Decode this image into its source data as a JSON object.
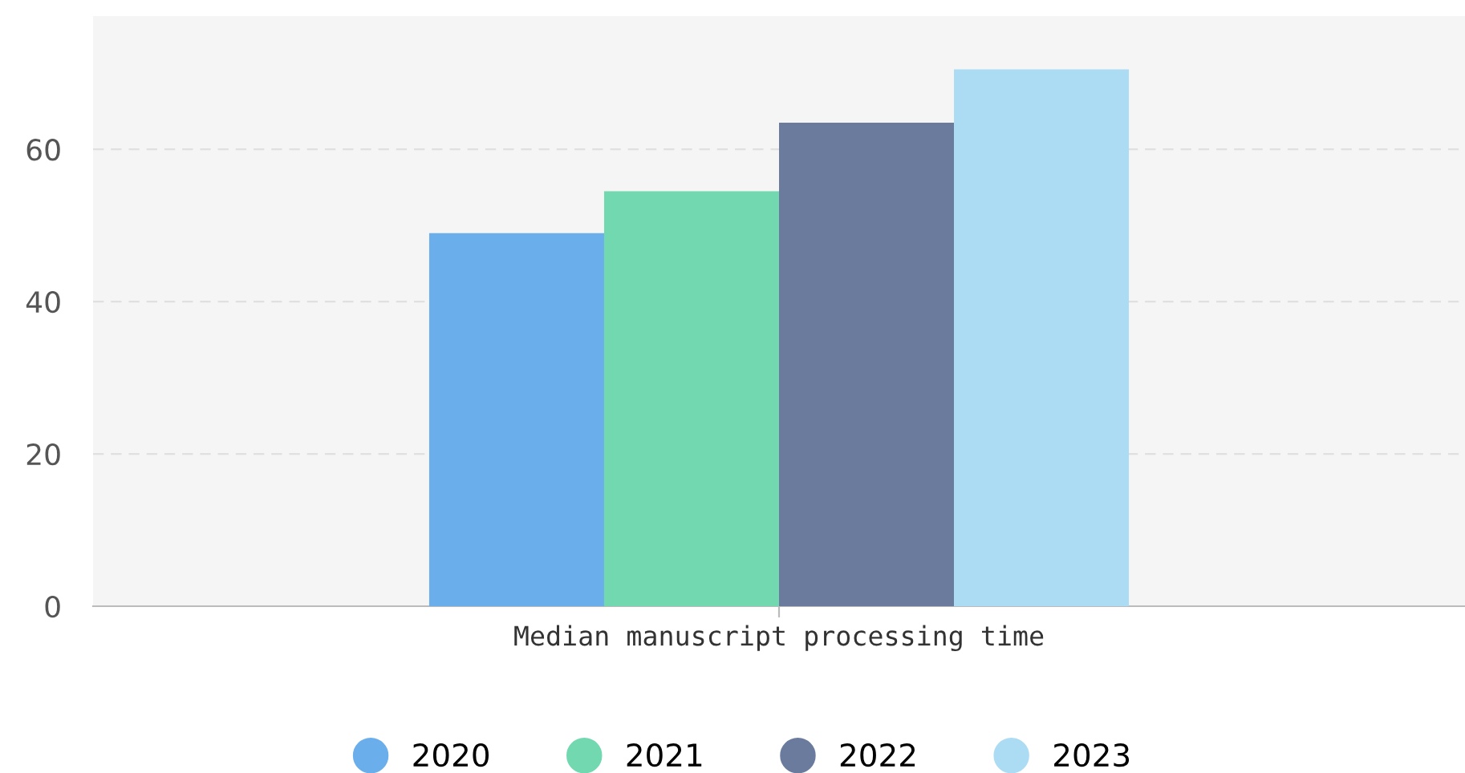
{
  "chart_data": {
    "type": "bar",
    "categories": [
      "Median manuscript processing time"
    ],
    "series": [
      {
        "name": "2020",
        "color": "#6aaeeb",
        "values": [
          49
        ]
      },
      {
        "name": "2021",
        "color": "#72d8b0",
        "values": [
          54.5
        ]
      },
      {
        "name": "2022",
        "color": "#6a7b9e",
        "values": [
          63.5
        ]
      },
      {
        "name": "2023",
        "color": "#acdcf3",
        "values": [
          70.5
        ]
      }
    ],
    "ylim": [
      0,
      77.5
    ],
    "yticks": [
      0,
      20,
      40,
      60
    ],
    "grid": "y",
    "legend": "bottom",
    "marker": "circle"
  }
}
